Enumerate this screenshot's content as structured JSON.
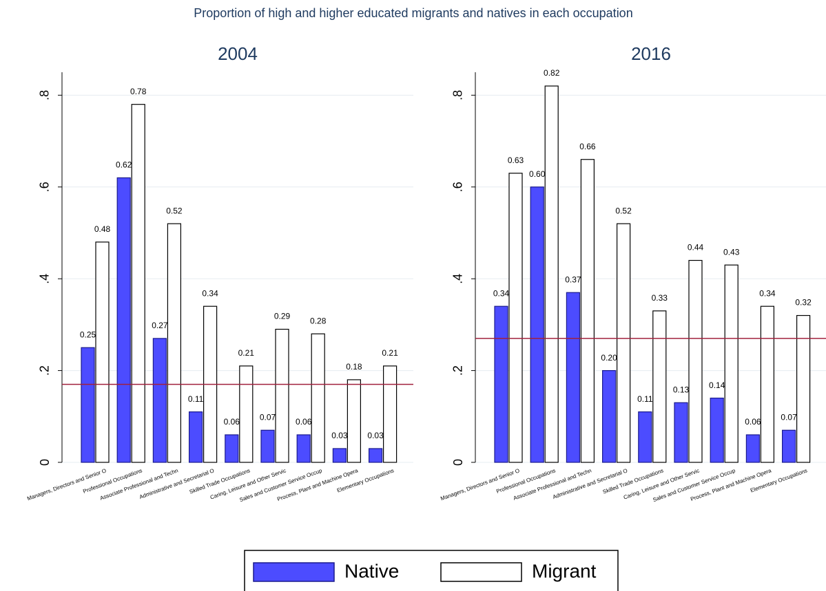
{
  "title": "Proportion of high and higher educated migrants and natives in each occupation",
  "chart_data": [
    {
      "type": "bar",
      "title": "2004",
      "categories": [
        "Managers, Directors and Senior O",
        "Professional Occupations",
        "Associate Professional and Techn",
        "Administrative and Secretarial O",
        "Skilled Trade Occupations",
        "Caring, Leisure and Other Servic",
        "Sales and Customer Service Occup",
        "Process, Plant and Machine Opera",
        "Elementary Occupations"
      ],
      "series": [
        {
          "name": "Native",
          "color": "#4c4cff",
          "values": [
            0.25,
            0.62,
            0.27,
            0.11,
            0.06,
            0.07,
            0.06,
            0.03,
            0.03
          ],
          "value_labels": [
            "0.25",
            "0.62",
            "0.27",
            "0.11",
            "0.06",
            "0.07",
            "0.06",
            "0.03",
            "0.03"
          ]
        },
        {
          "name": "Migrant",
          "color": "#ffffff",
          "values": [
            0.48,
            0.78,
            0.52,
            0.34,
            0.21,
            0.29,
            0.28,
            0.18,
            0.21
          ],
          "value_labels": [
            "0.48",
            "0.78",
            "0.52",
            "0.34",
            "0.21",
            "0.29",
            "0.28",
            "0.18",
            "0.21"
          ]
        }
      ],
      "reference_line": 0.17,
      "reference_color": "#a0203c",
      "ylim": [
        0,
        0.85
      ],
      "yticks": [
        0,
        {
          "value": 0.2,
          "label": ".2"
        },
        {
          "value": 0.4,
          "label": ".4"
        },
        {
          "value": 0.6,
          "label": ".6"
        },
        {
          "value": 0.8,
          "label": ".8"
        }
      ],
      "grid": true
    },
    {
      "type": "bar",
      "title": "2016",
      "categories": [
        "Managers, Directors and Senior O",
        "Professional Occupations",
        "Associate Professional and Techn",
        "Administrative and Secretarial O",
        "Skilled Trade Occupations",
        "Caring, Leisure and Other Servic",
        "Sales and Customer Service Occup",
        "Process, Plant and Machine Opera",
        "Elementary Occupations"
      ],
      "series": [
        {
          "name": "Native",
          "color": "#4c4cff",
          "values": [
            0.34,
            0.6,
            0.37,
            0.2,
            0.11,
            0.13,
            0.14,
            0.06,
            0.07
          ],
          "value_labels": [
            "0.34",
            "0.60",
            "0.37",
            "0.20",
            "0.11",
            "0.13",
            "0.14",
            "0.06",
            "0.07"
          ]
        },
        {
          "name": "Migrant",
          "color": "#ffffff",
          "values": [
            0.63,
            0.82,
            0.66,
            0.52,
            0.33,
            0.44,
            0.43,
            0.34,
            0.32
          ],
          "value_labels": [
            "0.63",
            "0.82",
            "0.66",
            "0.52",
            "0.33",
            "0.44",
            "0.43",
            "0.34",
            "0.32"
          ]
        }
      ],
      "reference_line": 0.27,
      "reference_color": "#a0203c",
      "ylim": [
        0,
        0.85
      ],
      "yticks": [
        0,
        {
          "value": 0.2,
          "label": ".2"
        },
        {
          "value": 0.4,
          "label": ".4"
        },
        {
          "value": 0.6,
          "label": ".6"
        },
        {
          "value": 0.8,
          "label": ".8"
        }
      ],
      "grid": true
    }
  ]
}
